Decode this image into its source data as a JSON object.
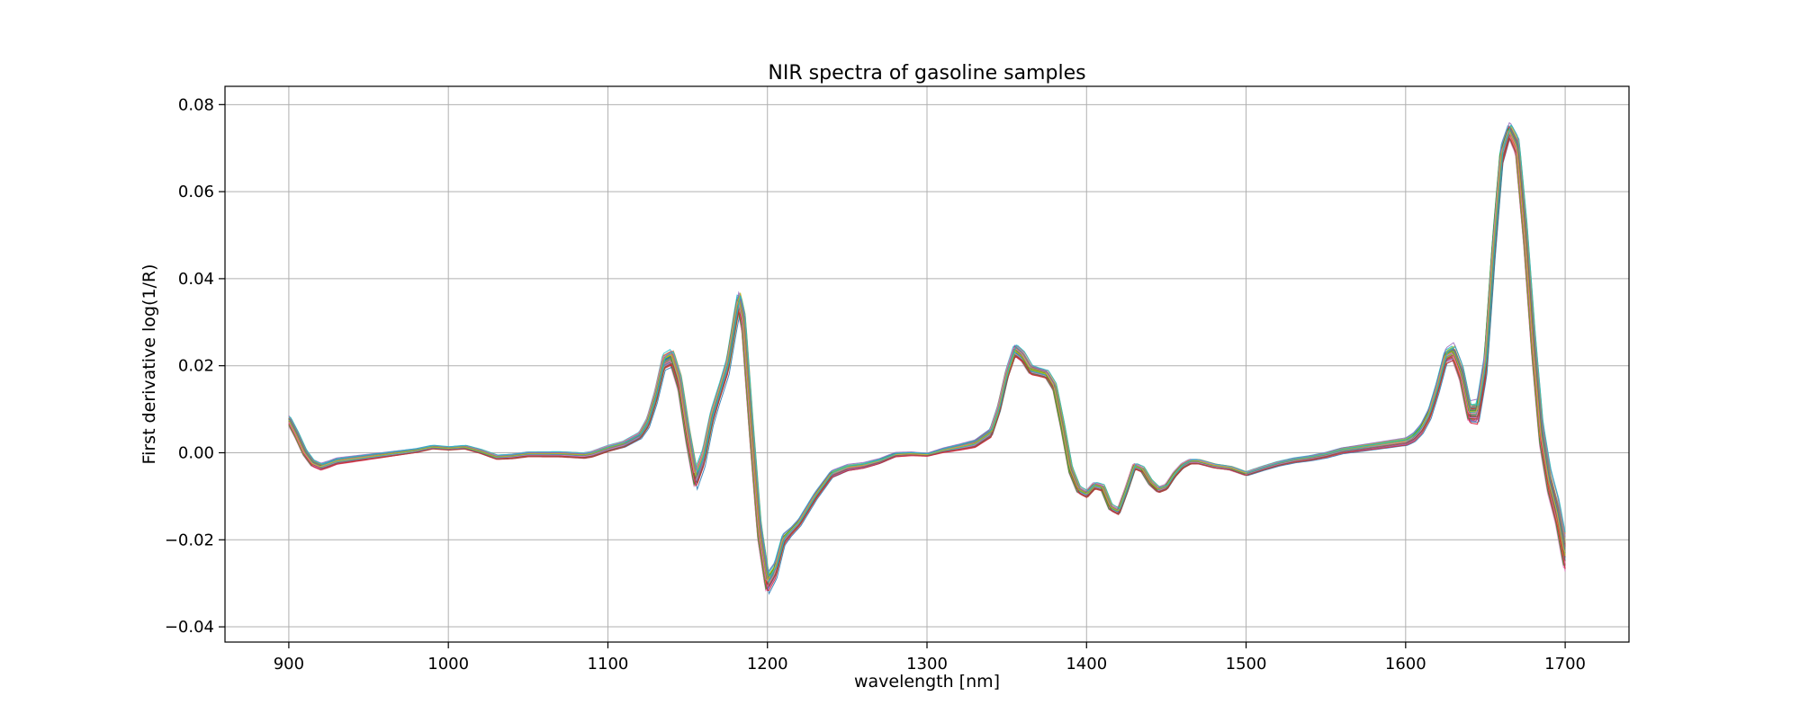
{
  "chart_data": {
    "type": "line",
    "title": "NIR spectra of gasoline samples",
    "xlabel": "wavelength [nm]",
    "ylabel": "First derivative log(1/R)",
    "xlim": [
      860,
      1740
    ],
    "ylim": [
      -0.0435,
      0.0842
    ],
    "xticks": [
      900,
      1000,
      1100,
      1200,
      1300,
      1400,
      1500,
      1600,
      1700
    ],
    "xtick_labels": [
      "900",
      "1000",
      "1100",
      "1200",
      "1300",
      "1400",
      "1500",
      "1600",
      "1700"
    ],
    "yticks": [
      -0.04,
      -0.02,
      0.0,
      0.02,
      0.04,
      0.06,
      0.08
    ],
    "ytick_labels": [
      "−0.04",
      "−0.02",
      "0.00",
      "0.02",
      "0.04",
      "0.06",
      "0.08"
    ],
    "grid": true,
    "legend": "none",
    "sample_count": 60,
    "series_colors": [
      "#1f77b4",
      "#ff7f0e",
      "#2ca02c",
      "#d62728",
      "#9467bd",
      "#8c564b",
      "#e377c2",
      "#7f7f7f",
      "#bcbd22",
      "#17becf"
    ],
    "mean_spectrum": {
      "x": [
        900,
        905,
        910,
        915,
        920,
        925,
        930,
        940,
        950,
        960,
        970,
        980,
        990,
        1000,
        1010,
        1020,
        1030,
        1040,
        1050,
        1060,
        1070,
        1080,
        1085,
        1090,
        1100,
        1110,
        1120,
        1125,
        1130,
        1135,
        1140,
        1145,
        1150,
        1155,
        1160,
        1165,
        1170,
        1175,
        1180,
        1182,
        1185,
        1190,
        1195,
        1200,
        1205,
        1210,
        1215,
        1220,
        1230,
        1240,
        1250,
        1260,
        1270,
        1280,
        1290,
        1300,
        1310,
        1320,
        1330,
        1340,
        1345,
        1350,
        1355,
        1360,
        1365,
        1370,
        1375,
        1380,
        1385,
        1390,
        1395,
        1400,
        1405,
        1410,
        1415,
        1420,
        1425,
        1430,
        1435,
        1440,
        1445,
        1450,
        1455,
        1460,
        1465,
        1470,
        1475,
        1480,
        1490,
        1500,
        1510,
        1520,
        1530,
        1540,
        1550,
        1560,
        1570,
        1580,
        1590,
        1600,
        1605,
        1610,
        1615,
        1620,
        1625,
        1630,
        1635,
        1640,
        1645,
        1650,
        1655,
        1660,
        1665,
        1670,
        1675,
        1680,
        1685,
        1690,
        1695,
        1700
      ],
      "y": [
        0.0075,
        0.004,
        0.0,
        -0.0025,
        -0.0033,
        -0.0027,
        -0.002,
        -0.0015,
        -0.001,
        -0.0005,
        0.0,
        0.0005,
        0.0013,
        0.001,
        0.0013,
        0.0003,
        -0.001,
        -0.0008,
        -0.0003,
        -0.0003,
        -0.0003,
        -0.0005,
        -0.0006,
        -0.0003,
        0.001,
        0.002,
        0.004,
        0.007,
        0.013,
        0.021,
        0.022,
        0.016,
        0.004,
        -0.006,
        -0.001,
        0.008,
        0.014,
        0.02,
        0.031,
        0.035,
        0.03,
        0.005,
        -0.018,
        -0.03,
        -0.027,
        -0.02,
        -0.018,
        -0.016,
        -0.01,
        -0.005,
        -0.0035,
        -0.003,
        -0.002,
        -0.0005,
        -0.0003,
        -0.0005,
        0.0005,
        0.0012,
        0.002,
        0.0045,
        0.01,
        0.018,
        0.0235,
        0.022,
        0.019,
        0.0185,
        0.018,
        0.015,
        0.006,
        -0.004,
        -0.0085,
        -0.0095,
        -0.0075,
        -0.008,
        -0.0125,
        -0.0135,
        -0.0085,
        -0.003,
        -0.0038,
        -0.0068,
        -0.0085,
        -0.0078,
        -0.005,
        -0.003,
        -0.002,
        -0.002,
        -0.0025,
        -0.003,
        -0.0035,
        -0.0048,
        -0.0036,
        -0.0025,
        -0.0017,
        -0.0012,
        -0.0005,
        0.0005,
        0.001,
        0.0015,
        0.002,
        0.0025,
        0.0035,
        0.0055,
        0.009,
        0.015,
        0.022,
        0.023,
        0.018,
        0.009,
        0.009,
        0.02,
        0.046,
        0.068,
        0.074,
        0.07,
        0.05,
        0.025,
        0.004,
        -0.007,
        -0.014,
        -0.024
      ]
    },
    "spread": {
      "x": [
        900,
        1000,
        1120,
        1135,
        1150,
        1155,
        1170,
        1182,
        1195,
        1200,
        1215,
        1230,
        1300,
        1350,
        1355,
        1370,
        1400,
        1500,
        1600,
        1625,
        1640,
        1655,
        1665,
        1680,
        1690,
        1700
      ],
      "y": [
        0.001,
        0.0005,
        0.001,
        0.0025,
        0.003,
        0.003,
        0.002,
        0.003,
        0.003,
        0.003,
        0.001,
        0.001,
        0.0004,
        0.0015,
        0.0018,
        0.0012,
        0.001,
        0.0006,
        0.001,
        0.002,
        0.0028,
        0.004,
        0.002,
        0.004,
        0.004,
        0.0045
      ]
    }
  }
}
